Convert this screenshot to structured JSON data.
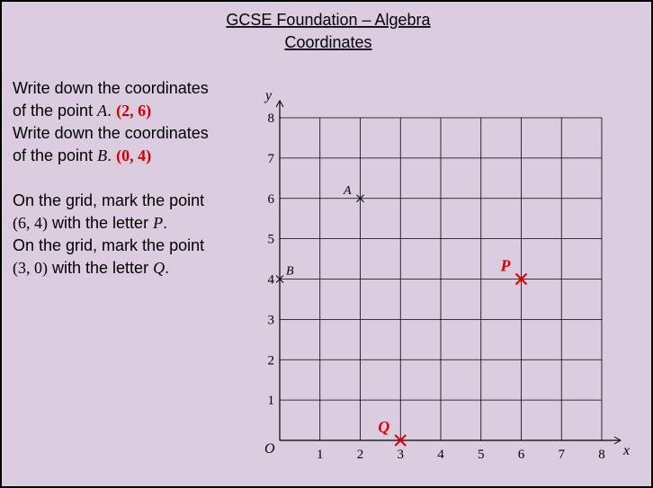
{
  "header": {
    "title": "GCSE Foundation – Algebra",
    "subtitle": "Coordinates"
  },
  "questions": [
    {
      "line1": "Write down the coordinates",
      "line2": "of the point",
      "name": "A",
      "punct": ".",
      "answer": "(2, 6)"
    },
    {
      "line1": "Write down the coordinates",
      "line2": "of the point",
      "name": "B",
      "punct": ".",
      "answer": "(0, 4)"
    }
  ],
  "tasks": [
    {
      "line1": "On the grid, mark the point",
      "coords": "(6, 4)",
      "text": "with the letter",
      "name": "P",
      "punct": "."
    },
    {
      "line1": "On the grid, mark the point",
      "coords": "(3, 0)",
      "text": "with the letter",
      "name": "Q",
      "punct": "."
    }
  ],
  "grid": {
    "xlim": [
      0,
      8
    ],
    "ylim": [
      0,
      8
    ],
    "xticks": [
      1,
      2,
      3,
      4,
      5,
      6,
      7,
      8
    ],
    "yticks": [
      1,
      2,
      3,
      4,
      5,
      6,
      7,
      8
    ],
    "x_label": "x",
    "y_label": "y",
    "origin_label": "O",
    "points": [
      {
        "label": "A",
        "x": 2,
        "y": 6,
        "color": "#000000"
      },
      {
        "label": "B",
        "x": 0,
        "y": 4,
        "color": "#000000"
      },
      {
        "label": "P",
        "x": 6,
        "y": 4,
        "color": "#e00000"
      },
      {
        "label": "Q",
        "x": 3,
        "y": 0,
        "color": "#e00000"
      }
    ]
  }
}
